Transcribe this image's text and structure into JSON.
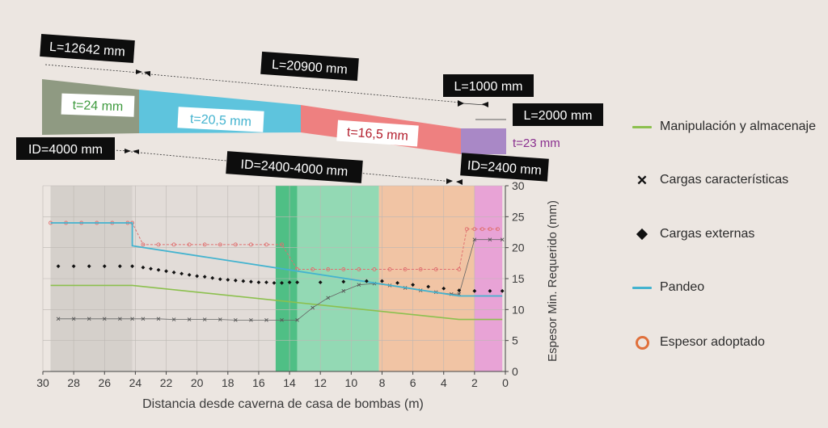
{
  "pipe": {
    "lengths": [
      "L=12642 mm",
      "L=20900 mm",
      "L=1000 mm",
      "L=2000 mm"
    ],
    "diameters": [
      "ID=4000 mm",
      "ID=2400-4000 mm",
      "ID=2400 mm"
    ],
    "thicknesses": [
      "t=24 mm",
      "t=20,5 mm",
      "t=16,5 mm",
      "t=23 mm"
    ],
    "colors": {
      "seg1": "#8f9a82",
      "seg2": "#5ec4dd",
      "seg3": "#ee8080",
      "seg4": "#a988c6",
      "t1": "#3e9a3e",
      "t2": "#43b3cf",
      "t3": "#b31d2c",
      "t4": "#8a2f8f"
    }
  },
  "legend": {
    "items": [
      {
        "label": "Manipulación y almacenaje",
        "symbol": "green-line-icon"
      },
      {
        "label": "Cargas características",
        "symbol": "x-marker-icon"
      },
      {
        "label": "Cargas externas",
        "symbol": "diamond-marker-icon"
      },
      {
        "label": "Pandeo",
        "symbol": "blue-line-icon"
      },
      {
        "label": "Espesor adoptado",
        "symbol": "orange-circle-icon"
      }
    ]
  },
  "chart_data": {
    "type": "line",
    "xlabel": "Distancia desde caverna de casa de bombas (m)",
    "ylabel": "Espesor Min. Requerido (mm)",
    "xlim": [
      30,
      0
    ],
    "ylim": [
      0,
      30
    ],
    "xticks": [
      30,
      28,
      26,
      24,
      22,
      20,
      18,
      16,
      14,
      12,
      10,
      8,
      6,
      4,
      2,
      0
    ],
    "yticks": [
      0,
      5,
      10,
      15,
      20,
      25,
      30
    ],
    "zones": [
      {
        "x": [
          29.5,
          24.2
        ],
        "color": "#d5d0cb"
      },
      {
        "x": [
          24.2,
          14.9
        ],
        "color": "#e2dcd8"
      },
      {
        "x": [
          14.9,
          13.5
        ],
        "color": "#4fbf85"
      },
      {
        "x": [
          13.5,
          8.2
        ],
        "color": "#93d9b4"
      },
      {
        "x": [
          8.2,
          2.0
        ],
        "color": "#f1c4a4"
      },
      {
        "x": [
          2.0,
          0.2
        ],
        "color": "#e8a3d6"
      }
    ],
    "series": [
      {
        "name": "Manipulación y almacenaje",
        "color": "#8cc04e",
        "x": [
          29.5,
          24.2,
          3.0,
          0.2
        ],
        "y": [
          13.9,
          13.9,
          8.4,
          8.4
        ]
      },
      {
        "name": "Pandeo",
        "color": "#43b3cf",
        "x": [
          29.5,
          24.2,
          24.2,
          3.0,
          0.2
        ],
        "y": [
          24.0,
          24.0,
          20.3,
          12.2,
          12.2
        ]
      },
      {
        "name": "Cargas características",
        "color": "#555555",
        "x": [
          29.0,
          28.0,
          27.0,
          26.0,
          25.0,
          24.2,
          23.5,
          22.5,
          21.5,
          20.5,
          19.5,
          18.5,
          17.5,
          16.5,
          15.5,
          14.5,
          13.5,
          12.5,
          11.5,
          10.5,
          9.5,
          8.5,
          7.5,
          6.5,
          5.5,
          4.5,
          3.5,
          3.0,
          2.0,
          1.0,
          0.2
        ],
        "y": [
          8.5,
          8.5,
          8.5,
          8.5,
          8.5,
          8.5,
          8.5,
          8.5,
          8.4,
          8.4,
          8.4,
          8.4,
          8.3,
          8.3,
          8.3,
          8.3,
          8.3,
          10.3,
          11.9,
          13.0,
          14.0,
          14.2,
          13.9,
          13.5,
          13.1,
          12.8,
          12.5,
          12.5,
          21.3,
          21.3,
          21.3
        ]
      },
      {
        "name": "Cargas externas",
        "color": "#111111",
        "x": [
          29.0,
          28.0,
          27.0,
          26.0,
          25.0,
          24.2,
          23.5,
          23.0,
          22.5,
          22.0,
          21.5,
          21.0,
          20.5,
          20.0,
          19.5,
          19.0,
          18.5,
          18.0,
          17.5,
          17.0,
          16.5,
          16.0,
          15.5,
          15.0,
          14.5,
          14.0,
          13.5,
          12.0,
          10.5,
          9.0,
          8.0,
          7.0,
          6.0,
          5.0,
          4.0,
          3.0,
          2.0,
          1.0,
          0.2
        ],
        "y": [
          17.0,
          17.0,
          17.0,
          17.0,
          17.0,
          17.0,
          16.8,
          16.6,
          16.4,
          16.2,
          16.0,
          15.8,
          15.6,
          15.4,
          15.3,
          15.1,
          14.9,
          14.8,
          14.7,
          14.6,
          14.5,
          14.4,
          14.4,
          14.3,
          14.3,
          14.4,
          14.4,
          14.4,
          14.5,
          14.6,
          14.6,
          14.3,
          14.0,
          13.7,
          13.4,
          13.1,
          13.0,
          13.0,
          13.0
        ]
      },
      {
        "name": "Espesor adoptado",
        "color": "#e07070",
        "x": [
          29.5,
          28.5,
          27.5,
          26.5,
          25.5,
          24.5,
          24.2,
          23.5,
          22.5,
          21.5,
          20.5,
          19.5,
          18.5,
          17.5,
          16.5,
          15.5,
          14.5,
          13.5,
          12.5,
          11.5,
          10.5,
          9.5,
          8.5,
          7.5,
          6.5,
          5.5,
          4.5,
          3.0,
          2.5,
          2.0,
          1.5,
          1.0,
          0.5
        ],
        "y": [
          24,
          24,
          24,
          24,
          24,
          24,
          24,
          20.5,
          20.5,
          20.5,
          20.5,
          20.5,
          20.5,
          20.5,
          20.5,
          20.5,
          20.5,
          16.5,
          16.5,
          16.5,
          16.5,
          16.5,
          16.5,
          16.5,
          16.5,
          16.5,
          16.5,
          16.5,
          23,
          23,
          23,
          23,
          23
        ]
      }
    ]
  }
}
